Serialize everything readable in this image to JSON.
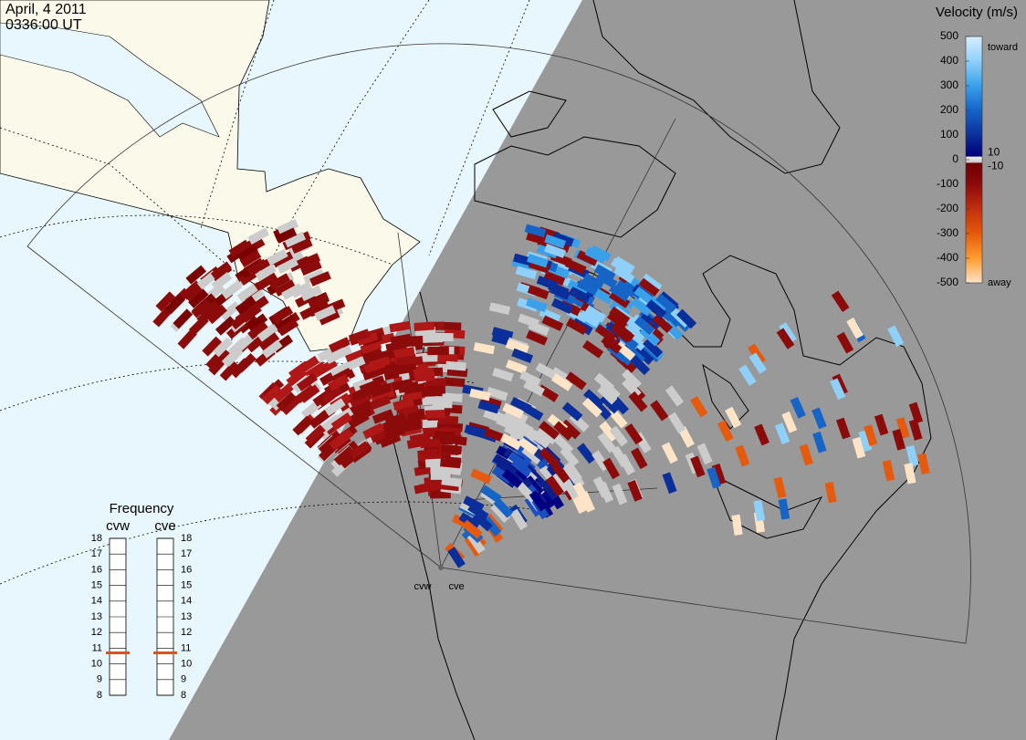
{
  "header": {
    "date": "April, 4 2011",
    "time": "0336:00 UT"
  },
  "colorbar": {
    "title": "Velocity (m/s)",
    "ticks": [
      500,
      400,
      300,
      200,
      100,
      0,
      -100,
      -200,
      -300,
      -400,
      -500
    ],
    "top_label": "toward",
    "bottom_label": "away",
    "inner_ticks": [
      10,
      -10
    ]
  },
  "frequency": {
    "title": "Frequency",
    "ticks": [
      8,
      9,
      10,
      11,
      12,
      13,
      14,
      15,
      16,
      17,
      18
    ],
    "radars": [
      {
        "name": "cvw",
        "value": 10.7
      },
      {
        "name": "cve",
        "value": 10.7
      }
    ]
  },
  "radar_sites": [
    "cvw",
    "cve"
  ]
}
